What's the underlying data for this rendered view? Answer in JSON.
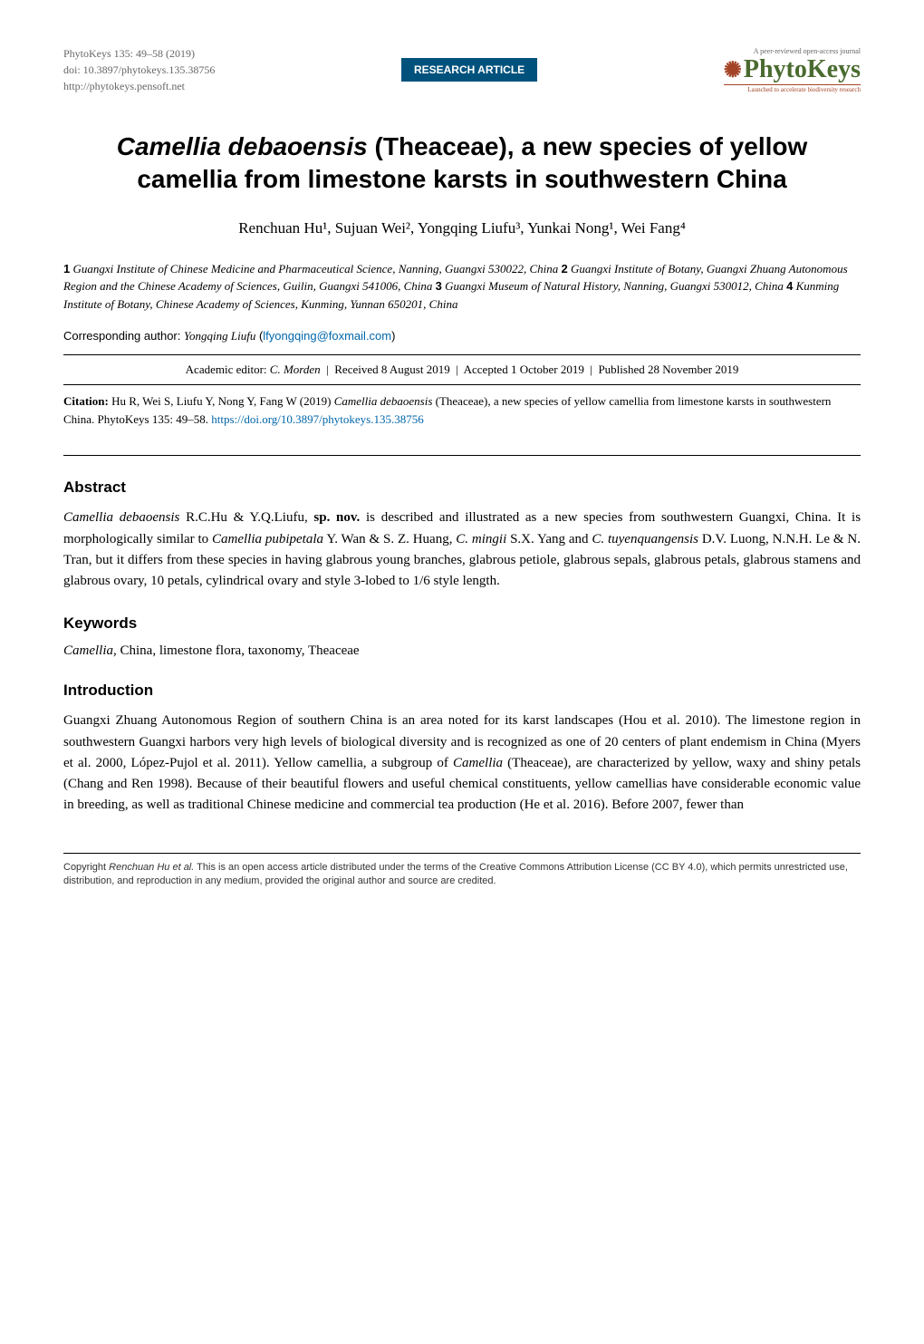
{
  "header": {
    "journal_ref": "PhytoKeys 135: 49–58 (2019)",
    "doi_line": "doi: 10.3897/phytokeys.135.38756",
    "website": "http://phytokeys.pensoft.net",
    "badge": "RESEARCH ARTICLE",
    "oa_label": "A peer-reviewed open-access journal",
    "journal_name": "PhytoKeys",
    "tagline": "Launched to accelerate biodiversity research"
  },
  "title": {
    "line1": "Camellia debaoensis (Theaceae), a new species of yellow",
    "line2": "camellia from limestone karsts in southwestern China",
    "italic_genus": "Camellia debaoensis"
  },
  "authors": "Renchuan Hu¹, Sujuan Wei², Yongqing Liufu³, Yunkai Nong¹, Wei Fang⁴",
  "affiliations": {
    "a1_num": "1",
    "a1_text": "Guangxi Institute of Chinese Medicine and Pharmaceutical Science, Nanning, Guangxi 530022, China",
    "a2_num": "2",
    "a2_text": "Guangxi Institute of Botany, Guangxi Zhuang Autonomous Region and the Chinese Academy of Sciences, Guilin, Guangxi 541006, China",
    "a3_num": "3",
    "a3_text": "Guangxi Museum of Natural History, Nanning, Guangxi 530012, China",
    "a4_num": "4",
    "a4_text": "Kunming Institute of Botany, Chinese Academy of Sciences, Kunming, Yunnan 650201, China"
  },
  "corresponding": {
    "label": "Corresponding author:",
    "name": "Yongqing Liufu",
    "email": "lfyongqing@foxmail.com"
  },
  "editorial": {
    "editor_label": "Academic editor:",
    "editor_name": "C. Morden",
    "received": "Received 8 August 2019",
    "accepted": "Accepted 1 October 2019",
    "published": "Published 28 November 2019"
  },
  "citation": {
    "label": "Citation:",
    "text_pre": "Hu R, Wei S, Liufu Y, Nong Y, Fang W (2019) ",
    "italic_species": "Camellia debaoensis",
    "text_mid": " (Theaceae), a new species of yellow camellia from limestone karsts in southwestern China. PhytoKeys 135: 49–58. ",
    "doi": "https://doi.org/10.3897/phytokeys.135.38756"
  },
  "abstract": {
    "heading": "Abstract",
    "p1_pre": "",
    "species1": "Camellia debaoensis",
    "p1_a": " R.C.Hu & Y.Q.Liufu, ",
    "spnov": "sp. nov.",
    "p1_b": " is described and illustrated as a new species from southwestern Guangxi, China. It is morphologically similar to ",
    "species2": "Camellia pubipetala",
    "p1_c": " Y. Wan & S. Z. Huang, ",
    "species3": "C. mingii",
    "p1_d": " S.X. Yang and ",
    "species4": "C. tuyenquangensis",
    "p1_e": " D.V. Luong, N.N.H. Le & N. Tran, but it differs from these species in having glabrous young branches, glabrous petiole, glabrous sepals, glabrous petals, glabrous stamens and glabrous ovary, 10 petals, cylindrical ovary and style 3-lobed to 1/6 style length."
  },
  "keywords": {
    "heading": "Keywords",
    "italic_term": "Camellia",
    "rest": ", China, limestone flora, taxonomy, Theaceae"
  },
  "introduction": {
    "heading": "Introduction",
    "p1_a": "Guangxi Zhuang Autonomous Region of southern China is an area noted for its karst landscapes (Hou et al. 2010). The limestone region in southwestern Guangxi harbors very high levels of biological diversity and is recognized as one of 20 centers of plant endemism in China (Myers et al. 2000, López-Pujol et al. 2011). Yellow camellia, a subgroup of ",
    "italic1": "Camellia",
    "p1_b": " (Theaceae), are characterized by yellow, waxy and shiny petals (Chang and Ren 1998). Because of their beautiful flowers and useful chemical constituents, yellow camellias have considerable economic value in breeding, as well as traditional Chinese medicine and commercial tea production (He et al. 2016). Before 2007, fewer than"
  },
  "footer": {
    "copyright_label": "Copyright",
    "holder": "Renchuan Hu et al.",
    "text": " This is an open access article distributed under the terms of the Creative Commons Attribution License (CC BY 4.0), which permits unrestricted use, distribution, and reproduction in any medium, provided the original author and source are credited."
  }
}
